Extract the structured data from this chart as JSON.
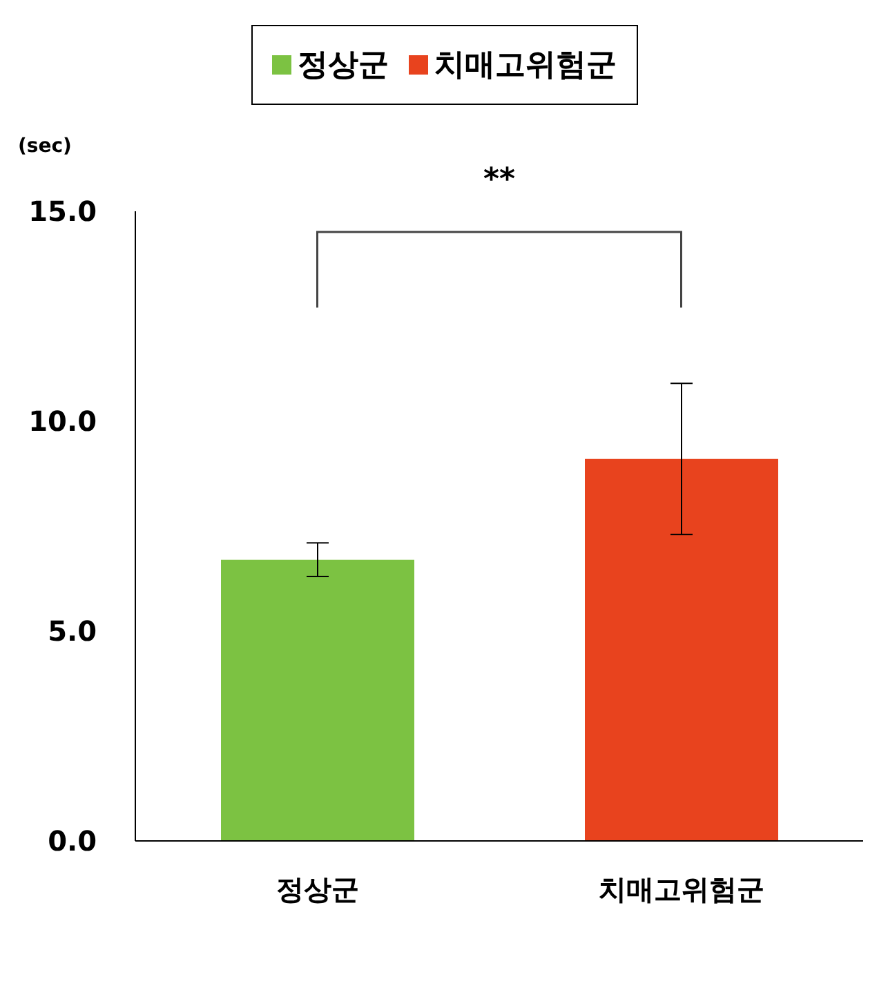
{
  "chart_data": {
    "type": "bar",
    "ylabel": "(sec)",
    "categories": [
      "정상군",
      "치매고위험군"
    ],
    "series": [
      {
        "name": "정상군",
        "color": "#7cc242",
        "values": [
          6.7,
          null
        ],
        "errors": [
          0.4,
          null
        ]
      },
      {
        "name": "치매고위험군",
        "color": "#e8431e",
        "values": [
          null,
          9.1
        ],
        "errors": [
          null,
          1.8
        ]
      }
    ],
    "ylim": [
      0,
      15
    ],
    "yticks": [
      {
        "value": 0,
        "label": "0.0"
      },
      {
        "value": 5,
        "label": "5.0"
      },
      {
        "value": 10,
        "label": "10.0"
      },
      {
        "value": 15,
        "label": "15.0"
      }
    ],
    "annotations": [
      "**"
    ],
    "legend": "top",
    "grid": false
  }
}
